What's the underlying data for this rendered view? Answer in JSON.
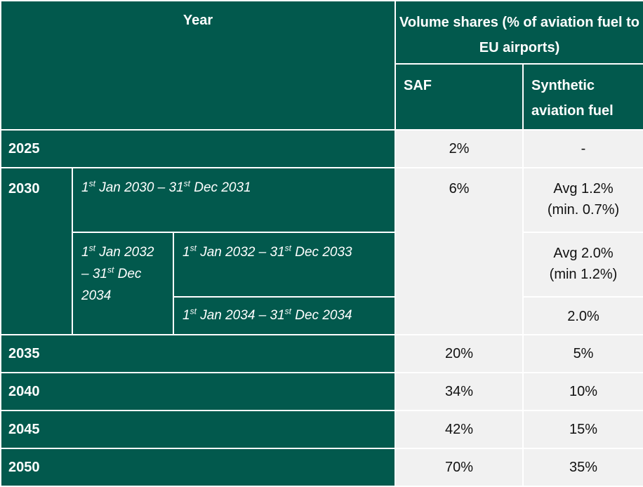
{
  "header": {
    "year": "Year",
    "volume_shares": "Volume shares (% of aviation fuel to EU airports)",
    "saf": "SAF",
    "synthetic": "Synthetic aviation fuel"
  },
  "rows": [
    {
      "year": "2025",
      "saf": "2%",
      "synthetic": "-"
    },
    {
      "year": "2030",
      "saf": "6%",
      "period1": {
        "d1": "1",
        "s1": "st",
        "t1": " Jan 2030 – 31",
        "s2": "st",
        "t2": " Dec 2031"
      },
      "syn1_line1": "Avg 1.2%",
      "syn1_line2": "(min. 0.7%)",
      "period2": {
        "d1": "1",
        "s1": "st",
        "t1": " Jan 2032",
        "t2": "– 31",
        "s2": "st",
        "t3": " Dec",
        "t4": "2034"
      },
      "period2a": {
        "d1": "1",
        "s1": "st",
        "t1": " Jan 2032 – 31",
        "s2": "st",
        "t2": " Dec 2033"
      },
      "syn2_line1": "Avg 2.0%",
      "syn2_line2": "(min 1.2%)",
      "period2b": {
        "d1": "1",
        "s1": "st",
        "t1": " Jan 2034 – 31",
        "s2": "st",
        "t2": " Dec 2034"
      },
      "syn3": "2.0%"
    },
    {
      "year": "2035",
      "saf": "20%",
      "synthetic": "5%"
    },
    {
      "year": "2040",
      "saf": "34%",
      "synthetic": "10%"
    },
    {
      "year": "2045",
      "saf": "42%",
      "synthetic": "15%"
    },
    {
      "year": "2050",
      "saf": "70%",
      "synthetic": "35%"
    }
  ],
  "colors": {
    "header_green": "#02594d",
    "cell_light": "#f1f1f1",
    "text_white": "#ffffff"
  }
}
